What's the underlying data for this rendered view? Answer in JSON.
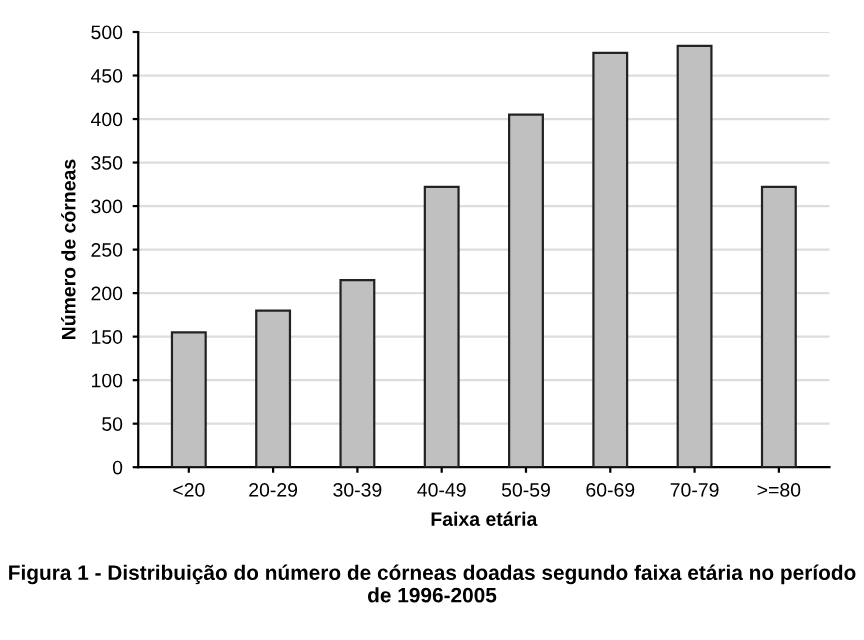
{
  "chart_data": {
    "type": "bar",
    "xlabel": "Faixa etária",
    "ylabel": "Número de córneas",
    "categories": [
      "<20",
      "20-29",
      "30-39",
      "40-49",
      "50-59",
      "60-69",
      "70-79",
      ">=80"
    ],
    "values": [
      155,
      180,
      215,
      322,
      405,
      476,
      484,
      322
    ],
    "color": "#c0c0c0",
    "ylim": [
      0,
      500
    ],
    "yticks": [
      0,
      50,
      100,
      150,
      200,
      250,
      300,
      350,
      400,
      450,
      500
    ],
    "grid": "y",
    "annotations": [
      "Figura 1 - Distribuição do número de córneas doadas segundo faixa etária no período de 1996-2005"
    ]
  }
}
